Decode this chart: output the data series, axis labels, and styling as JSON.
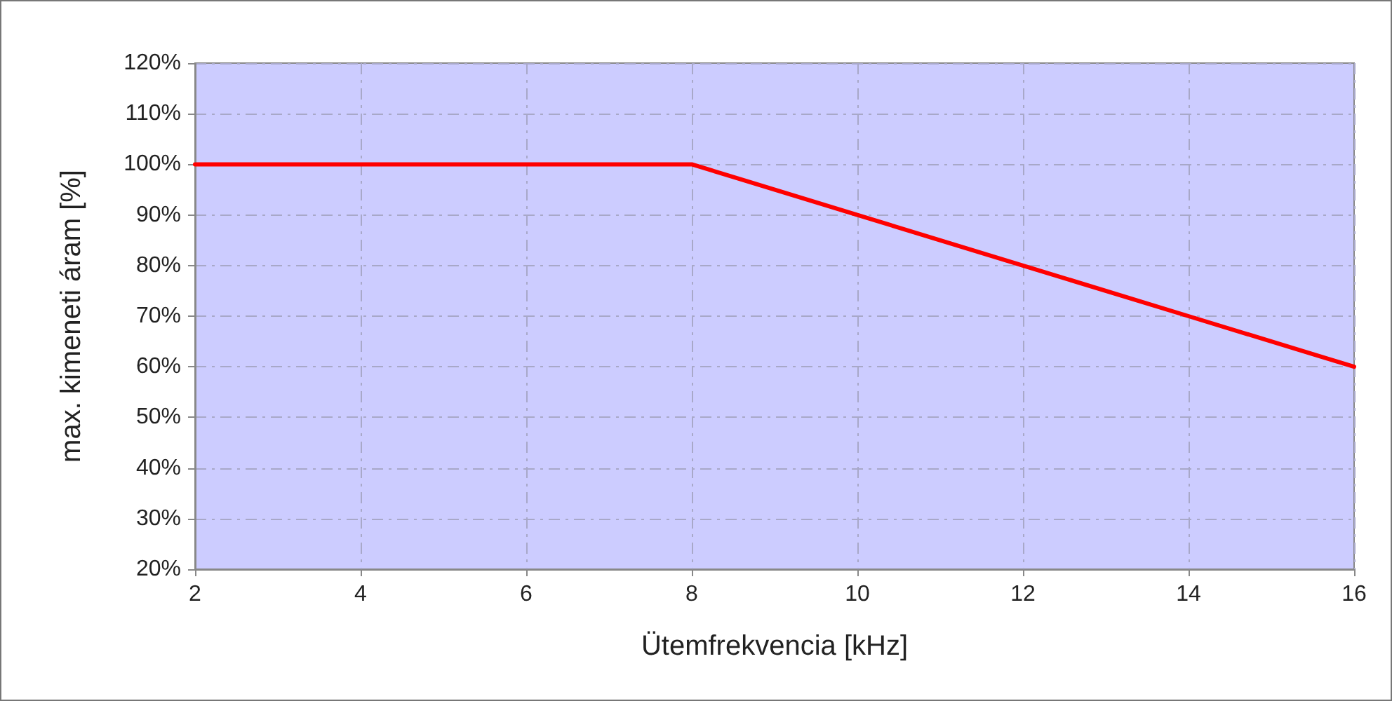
{
  "chart_data": {
    "type": "line",
    "xlabel": "Ütemfrekvencia [kHz]",
    "ylabel": "max. kimeneti áram [%]",
    "x": [
      2,
      8,
      10,
      12,
      14,
      16
    ],
    "series": [
      {
        "color": "#ff0000",
        "values": [
          100,
          100,
          90,
          80,
          70,
          60
        ]
      }
    ],
    "xlim": [
      2,
      16
    ],
    "xticks": [
      2,
      4,
      6,
      8,
      10,
      12,
      14,
      16
    ],
    "ylim": [
      20,
      120
    ],
    "yticks": [
      {
        "value": 20,
        "label": "20%"
      },
      {
        "value": 30,
        "label": "30%"
      },
      {
        "value": 40,
        "label": "40%"
      },
      {
        "value": 50,
        "label": "50%"
      },
      {
        "value": 60,
        "label": "60%"
      },
      {
        "value": 70,
        "label": "70%"
      },
      {
        "value": 80,
        "label": "80%"
      },
      {
        "value": 90,
        "label": "90%"
      },
      {
        "value": 100,
        "label": "100%"
      },
      {
        "value": 110,
        "label": "110%"
      },
      {
        "value": 120,
        "label": "120%"
      }
    ],
    "grid": true,
    "marker": "none",
    "line_style": "solid"
  }
}
